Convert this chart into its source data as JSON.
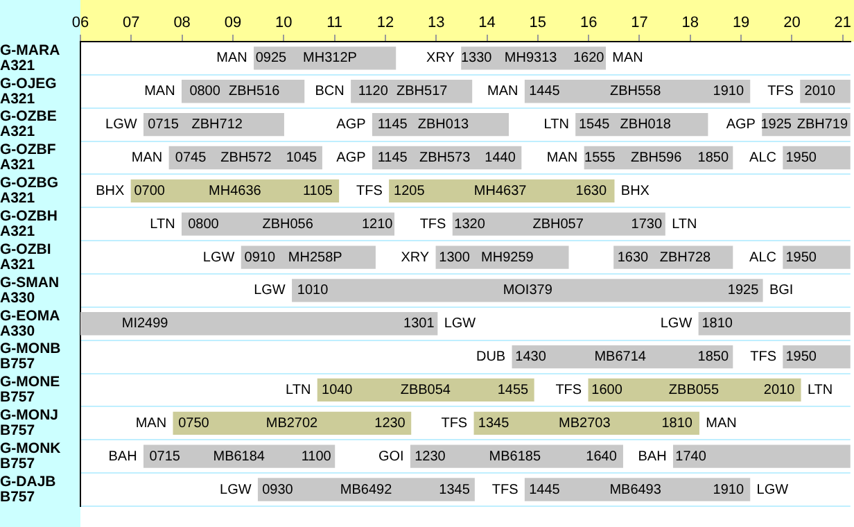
{
  "chart_data": {
    "type": "bar",
    "orientation": "horizontal",
    "grid": "y",
    "legend": false,
    "categories": [
      "G-MARA A321",
      "G-OJEG A321",
      "G-OZBE A321",
      "G-OZBF A321",
      "G-OZBG A321",
      "G-OZBH A321",
      "G-OZBI A321",
      "G-SMAN A330",
      "G-EOMA A330",
      "G-MONB B757",
      "G-MONE B757",
      "G-MONJ B757",
      "G-MONK B757",
      "G-DAJB B757"
    ],
    "xlim": [
      6,
      21.15
    ],
    "xticks": [
      {
        "value": 6,
        "label": "06"
      },
      {
        "value": 7,
        "label": "07"
      },
      {
        "value": 8,
        "label": "08"
      },
      {
        "value": 9,
        "label": "09"
      },
      {
        "value": 10,
        "label": "10"
      },
      {
        "value": 11,
        "label": "11"
      },
      {
        "value": 12,
        "label": "12"
      },
      {
        "value": 13,
        "label": "13"
      },
      {
        "value": 14,
        "label": "14"
      },
      {
        "value": 15,
        "label": "15"
      },
      {
        "value": 16,
        "label": "16"
      },
      {
        "value": 17,
        "label": "17"
      },
      {
        "value": 18,
        "label": "18"
      },
      {
        "value": 19,
        "label": "19"
      },
      {
        "value": 20,
        "label": "20"
      },
      {
        "value": 21,
        "label": "21"
      }
    ],
    "series": [
      {
        "base": [
          9.42,
          8,
          7.25,
          7.75,
          7,
          8,
          9.17,
          10.17,
          6,
          14.5,
          10.67,
          7.83,
          7.25,
          9.5
        ],
        "values": [
          2.78,
          2.4,
          2.75,
          3,
          4.08,
          4.17,
          2.63,
          9.25,
          7.02,
          4.33,
          4.25,
          4.67,
          3.75,
          4.25
        ],
        "colors": [
          "#c8c8c8",
          "#c8c8c8",
          "#c8c8c8",
          "#c8c8c8",
          "#cccc99",
          "#c8c8c8",
          "#c8c8c8",
          "#c8c8c8",
          "#c8c8c8",
          "#c8c8c8",
          "#cccc99",
          "#cccc99",
          "#c8c8c8",
          "#c8c8c8"
        ]
      },
      {
        "base": [
          13.5,
          11.33,
          11.75,
          11.75,
          12.08,
          13.33,
          13,
          null,
          18.17,
          19.83,
          16,
          13.75,
          12.5,
          14.75
        ],
        "values": [
          2.83,
          2.37,
          2.67,
          2.92,
          4.42,
          4.17,
          2.6,
          null,
          2.98,
          1.32,
          4.17,
          4.42,
          4.17,
          4.42
        ],
        "colors": [
          "#c8c8c8",
          "#c8c8c8",
          "#c8c8c8",
          "#c8c8c8",
          "#cccc99",
          "#c8c8c8",
          "#c8c8c8",
          "#c8c8c8",
          "#c8c8c8",
          "#c8c8c8",
          "#cccc99",
          "#cccc99",
          "#c8c8c8",
          "#c8c8c8"
        ]
      },
      {
        "base": [
          null,
          14.75,
          15.75,
          15.92,
          null,
          null,
          16.5,
          null,
          null,
          null,
          null,
          null,
          17.67,
          null
        ],
        "values": [
          null,
          4.42,
          2.59,
          2.91,
          null,
          null,
          2.33,
          null,
          null,
          null,
          null,
          null,
          3.48,
          null
        ],
        "color": "#c8c8c8"
      },
      {
        "base": [
          null,
          20.17,
          19.42,
          19.83,
          null,
          null,
          19.83,
          null,
          null,
          null,
          null,
          null,
          null,
          null
        ],
        "values": [
          null,
          0.98,
          1.73,
          1.32,
          null,
          null,
          1.32,
          null,
          null,
          null,
          null,
          null,
          null,
          null
        ],
        "color": "#c8c8c8"
      }
    ],
    "annotations": [
      {
        "text": "MAN",
        "x": 9.42,
        "y": "G-MARA A321"
      },
      {
        "text": "0925",
        "x": 9.75,
        "y": "G-MARA A321"
      },
      {
        "text": "MH312P",
        "x": 10.91,
        "y": "G-MARA A321"
      },
      {
        "text": "XRY",
        "x": 13.5,
        "y": "G-MARA A321"
      },
      {
        "text": "1330",
        "x": 13.79,
        "y": "G-MARA A321"
      },
      {
        "text": "MH9313",
        "x": 14.86,
        "y": "G-MARA A321"
      },
      {
        "text": "1620",
        "x": 16.0,
        "y": "G-MARA A321"
      },
      {
        "text": "MAN",
        "x": 16.33,
        "y": "G-MARA A321"
      },
      {
        "text": "MAN",
        "x": 8,
        "y": "G-OJEG A321"
      },
      {
        "text": "0800",
        "x": 8.45,
        "y": "G-OJEG A321"
      },
      {
        "text": "ZBH516",
        "x": 9.42,
        "y": "G-OJEG A321"
      },
      {
        "text": "BCN",
        "x": 11.33,
        "y": "G-OJEG A321"
      },
      {
        "text": "1120",
        "x": 11.76,
        "y": "G-OJEG A321"
      },
      {
        "text": "ZBH517",
        "x": 12.72,
        "y": "G-OJEG A321"
      },
      {
        "text": "MAN",
        "x": 14.75,
        "y": "G-OJEG A321"
      },
      {
        "text": "1445",
        "x": 15.13,
        "y": "G-OJEG A321"
      },
      {
        "text": "ZBH558",
        "x": 16.92,
        "y": "G-OJEG A321"
      },
      {
        "text": "1910",
        "x": 18.75,
        "y": "G-OJEG A321"
      },
      {
        "text": "TFS",
        "x": 20.17,
        "y": "G-OJEG A321"
      },
      {
        "text": "2010",
        "x": 20.55,
        "y": "G-OJEG A321"
      },
      {
        "text": "LGW",
        "x": 7.25,
        "y": "G-OZBE A321"
      },
      {
        "text": "0715",
        "x": 7.63,
        "y": "G-OZBE A321"
      },
      {
        "text": "ZBH712",
        "x": 8.69,
        "y": "G-OZBE A321"
      },
      {
        "text": "AGP",
        "x": 11.75,
        "y": "G-OZBE A321"
      },
      {
        "text": "1145",
        "x": 12.14,
        "y": "G-OZBE A321"
      },
      {
        "text": "ZBH013",
        "x": 13.14,
        "y": "G-OZBE A321"
      },
      {
        "text": "LTN",
        "x": 15.75,
        "y": "G-OZBE A321"
      },
      {
        "text": "1545",
        "x": 16.11,
        "y": "G-OZBE A321"
      },
      {
        "text": "ZBH018",
        "x": 17.12,
        "y": "G-OZBE A321"
      },
      {
        "text": "AGP",
        "x": 19.42,
        "y": "G-OZBE A321"
      },
      {
        "text": "1925",
        "x": 19.69,
        "y": "G-OZBE A321"
      },
      {
        "text": "ZBH719",
        "x": 20.6,
        "y": "G-OZBE A321"
      },
      {
        "text": "MAN",
        "x": 7.75,
        "y": "G-OZBF A321"
      },
      {
        "text": "0745",
        "x": 8.17,
        "y": "G-OZBF A321"
      },
      {
        "text": "ZBH572",
        "x": 9.26,
        "y": "G-OZBF A321"
      },
      {
        "text": "1045",
        "x": 10.35,
        "y": "G-OZBF A321"
      },
      {
        "text": "AGP",
        "x": 11.75,
        "y": "G-OZBF A321"
      },
      {
        "text": "1145",
        "x": 12.14,
        "y": "G-OZBF A321"
      },
      {
        "text": "ZBH573",
        "x": 13.17,
        "y": "G-OZBF A321"
      },
      {
        "text": "1440",
        "x": 14.26,
        "y": "G-OZBF A321"
      },
      {
        "text": "MAN",
        "x": 15.92,
        "y": "G-OZBF A321"
      },
      {
        "text": "1555",
        "x": 16.22,
        "y": "G-OZBF A321"
      },
      {
        "text": "ZBH596",
        "x": 17.33,
        "y": "G-OZBF A321"
      },
      {
        "text": "1850",
        "x": 18.45,
        "y": "G-OZBF A321"
      },
      {
        "text": "ALC",
        "x": 19.83,
        "y": "G-OZBF A321"
      },
      {
        "text": "1950",
        "x": 20.18,
        "y": "G-OZBF A321"
      },
      {
        "text": "BHX",
        "x": 7,
        "y": "G-OZBG A321"
      },
      {
        "text": "0700",
        "x": 7.36,
        "y": "G-OZBG A321"
      },
      {
        "text": "MH4636",
        "x": 9.04,
        "y": "G-OZBG A321"
      },
      {
        "text": "1105",
        "x": 10.67,
        "y": "G-OZBG A321"
      },
      {
        "text": "TFS",
        "x": 12.08,
        "y": "G-OZBG A321"
      },
      {
        "text": "1205",
        "x": 12.47,
        "y": "G-OZBG A321"
      },
      {
        "text": "MH4637",
        "x": 14.26,
        "y": "G-OZBG A321"
      },
      {
        "text": "1630",
        "x": 16.05,
        "y": "G-OZBG A321"
      },
      {
        "text": "BHX",
        "x": 16.5,
        "y": "G-OZBG A321"
      },
      {
        "text": "LTN",
        "x": 8,
        "y": "G-OZBH A321"
      },
      {
        "text": "0800",
        "x": 8.42,
        "y": "G-OZBH A321"
      },
      {
        "text": "ZBH056",
        "x": 10.08,
        "y": "G-OZBH A321"
      },
      {
        "text": "1210",
        "x": 11.84,
        "y": "G-OZBH A321"
      },
      {
        "text": "TFS",
        "x": 13.33,
        "y": "G-OZBH A321"
      },
      {
        "text": "1320",
        "x": 13.66,
        "y": "G-OZBH A321"
      },
      {
        "text": "ZBH057",
        "x": 15.4,
        "y": "G-OZBH A321"
      },
      {
        "text": "1730",
        "x": 17.14,
        "y": "G-OZBH A321"
      },
      {
        "text": "LTN",
        "x": 17.5,
        "y": "G-OZBH A321"
      },
      {
        "text": "LGW",
        "x": 9.17,
        "y": "G-OZBI A321"
      },
      {
        "text": "0910",
        "x": 9.53,
        "y": "G-OZBI A321"
      },
      {
        "text": "MH258P",
        "x": 10.62,
        "y": "G-OZBI A321"
      },
      {
        "text": "XRY",
        "x": 13,
        "y": "G-OZBI A321"
      },
      {
        "text": "1300",
        "x": 13.36,
        "y": "G-OZBI A321"
      },
      {
        "text": "MH9259",
        "x": 14.4,
        "y": "G-OZBI A321"
      },
      {
        "text": "1630",
        "x": 16.87,
        "y": "G-OZBI A321"
      },
      {
        "text": "ZBH728",
        "x": 17.9,
        "y": "G-OZBI A321"
      },
      {
        "text": "ALC",
        "x": 19.83,
        "y": "G-OZBI A321"
      },
      {
        "text": "1950",
        "x": 20.18,
        "y": "G-OZBI A321"
      },
      {
        "text": "LGW",
        "x": 10.17,
        "y": "G-SMAN A330"
      },
      {
        "text": "1010",
        "x": 10.57,
        "y": "G-SMAN A330"
      },
      {
        "text": "MOI379",
        "x": 14.8,
        "y": "G-SMAN A330"
      },
      {
        "text": "1925",
        "x": 19.04,
        "y": "G-SMAN A330"
      },
      {
        "text": "BGI",
        "x": 19.42,
        "y": "G-SMAN A330"
      },
      {
        "text": "MI2499",
        "x": 7.27,
        "y": "G-EOMA A330"
      },
      {
        "text": "1301",
        "x": 12.66,
        "y": "G-EOMA A330"
      },
      {
        "text": "LGW",
        "x": 13.02,
        "y": "G-EOMA A330"
      },
      {
        "text": "LGW",
        "x": 18.17,
        "y": "G-EOMA A330"
      },
      {
        "text": "1810",
        "x": 18.53,
        "y": "G-EOMA A330"
      },
      {
        "text": "DUB",
        "x": 14.5,
        "y": "G-MONB B757"
      },
      {
        "text": "1430",
        "x": 14.86,
        "y": "G-MONB B757"
      },
      {
        "text": "MB6714",
        "x": 16.62,
        "y": "G-MONB B757"
      },
      {
        "text": "1850",
        "x": 18.45,
        "y": "G-MONB B757"
      },
      {
        "text": "TFS",
        "x": 19.83,
        "y": "G-MONB B757"
      },
      {
        "text": "1950",
        "x": 20.18,
        "y": "G-MONB B757"
      },
      {
        "text": "LTN",
        "x": 10.67,
        "y": "G-MONE B757"
      },
      {
        "text": "1040",
        "x": 11.05,
        "y": "G-MONE B757"
      },
      {
        "text": "ZBB054",
        "x": 12.79,
        "y": "G-MONE B757"
      },
      {
        "text": "1455",
        "x": 14.51,
        "y": "G-MONE B757"
      },
      {
        "text": "TFS",
        "x": 16,
        "y": "G-MONE B757"
      },
      {
        "text": "1600",
        "x": 16.36,
        "y": "G-MONE B757"
      },
      {
        "text": "ZBB055",
        "x": 18.07,
        "y": "G-MONE B757"
      },
      {
        "text": "2010",
        "x": 19.75,
        "y": "G-MONE B757"
      },
      {
        "text": "LTN",
        "x": 20.17,
        "y": "G-MONE B757"
      },
      {
        "text": "MAN",
        "x": 7.83,
        "y": "G-MONJ B757"
      },
      {
        "text": "0750",
        "x": 8.23,
        "y": "G-MONJ B757"
      },
      {
        "text": "MB2702",
        "x": 10.16,
        "y": "G-MONJ B757"
      },
      {
        "text": "1230",
        "x": 12.09,
        "y": "G-MONJ B757"
      },
      {
        "text": "TFS",
        "x": 13.75,
        "y": "G-MONJ B757"
      },
      {
        "text": "1345",
        "x": 14.13,
        "y": "G-MONJ B757"
      },
      {
        "text": "MB2703",
        "x": 15.92,
        "y": "G-MONJ B757"
      },
      {
        "text": "1810",
        "x": 17.74,
        "y": "G-MONJ B757"
      },
      {
        "text": "MAN",
        "x": 18.17,
        "y": "G-MONJ B757"
      },
      {
        "text": "BAH",
        "x": 7.25,
        "y": "G-MONK B757"
      },
      {
        "text": "0715",
        "x": 7.66,
        "y": "G-MONK B757"
      },
      {
        "text": "MB6184",
        "x": 9.12,
        "y": "G-MONK B757"
      },
      {
        "text": "1100",
        "x": 10.64,
        "y": "G-MONK B757"
      },
      {
        "text": "GOI",
        "x": 12.5,
        "y": "G-MONK B757"
      },
      {
        "text": "1230",
        "x": 12.88,
        "y": "G-MONK B757"
      },
      {
        "text": "MB6185",
        "x": 14.55,
        "y": "G-MONK B757"
      },
      {
        "text": "1640",
        "x": 16.25,
        "y": "G-MONK B757"
      },
      {
        "text": "BAH",
        "x": 17.67,
        "y": "G-MONK B757"
      },
      {
        "text": "1740",
        "x": 18.01,
        "y": "G-MONK B757"
      },
      {
        "text": "LGW",
        "x": 9.5,
        "y": "G-DAJB B757"
      },
      {
        "text": "0930",
        "x": 9.88,
        "y": "G-DAJB B757"
      },
      {
        "text": "MB6492",
        "x": 11.62,
        "y": "G-DAJB B757"
      },
      {
        "text": "1345",
        "x": 13.36,
        "y": "G-DAJB B757"
      },
      {
        "text": "TFS",
        "x": 14.75,
        "y": "G-DAJB B757"
      },
      {
        "text": "1445",
        "x": 15.13,
        "y": "G-DAJB B757"
      },
      {
        "text": "MB6493",
        "x": 16.92,
        "y": "G-DAJB B757"
      },
      {
        "text": "1910",
        "x": 18.75,
        "y": "G-DAJB B757"
      },
      {
        "text": "LGW",
        "x": 19.17,
        "y": "G-DAJB B757"
      }
    ]
  }
}
